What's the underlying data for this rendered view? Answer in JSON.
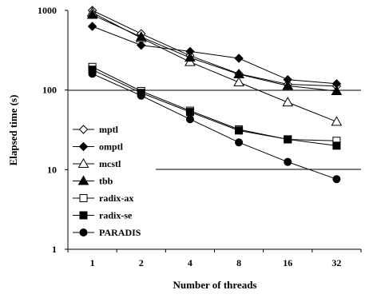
{
  "chart_data": {
    "type": "line",
    "title": "",
    "xlabel": "Number of threads",
    "ylabel": "Elapsed time (s)",
    "x": [
      "1",
      "2",
      "4",
      "8",
      "16",
      "32"
    ],
    "y_scale": "log",
    "ylim": [
      1,
      1000
    ],
    "y_ticks": [
      "1",
      "10",
      "100",
      "1000"
    ],
    "gridlines_y": [
      10,
      100
    ],
    "legend_position": "left-center",
    "series": [
      {
        "name": "mptl",
        "marker": "diamond-open",
        "values": [
          1000,
          510,
          270,
          160,
          118,
          112
        ]
      },
      {
        "name": "omptl",
        "marker": "diamond-filled",
        "values": [
          630,
          365,
          305,
          250,
          135,
          120
        ]
      },
      {
        "name": "mcstl",
        "marker": "triangle-open",
        "values": [
          940,
          450,
          225,
          125,
          70,
          40
        ]
      },
      {
        "name": "tbb",
        "marker": "triangle-filled",
        "values": [
          880,
          465,
          255,
          158,
          113,
          97
        ]
      },
      {
        "name": "radix-ax",
        "marker": "square-open",
        "values": [
          195,
          97,
          55,
          32,
          24,
          23
        ]
      },
      {
        "name": "radix-se",
        "marker": "square-filled",
        "values": [
          180,
          92,
          53,
          31,
          24,
          20
        ]
      },
      {
        "name": "PARADIS",
        "marker": "circle-filled",
        "values": [
          160,
          85,
          43,
          22,
          12.5,
          7.6
        ]
      }
    ]
  }
}
